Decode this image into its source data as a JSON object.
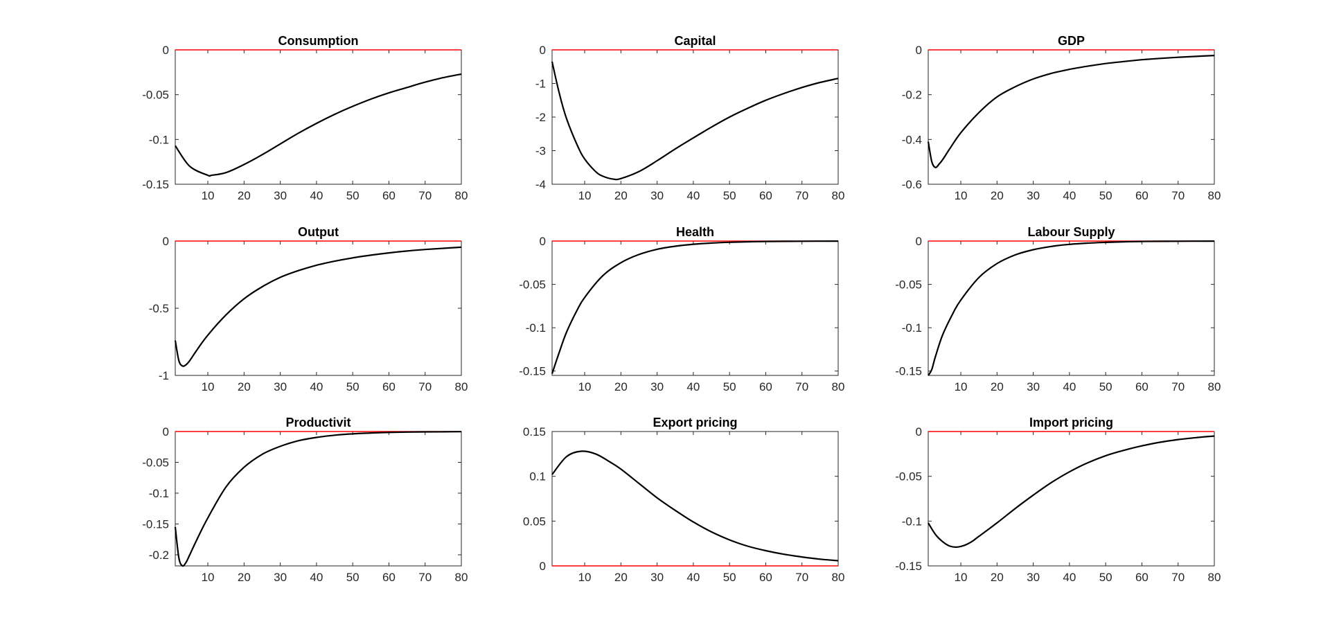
{
  "chart_data": [
    {
      "type": "line",
      "title": "Consumption",
      "xlim": [
        1,
        80
      ],
      "ylim": [
        -0.15,
        0
      ],
      "xticks": [
        10,
        20,
        30,
        40,
        50,
        60,
        70,
        80
      ],
      "yticks": [
        0,
        -0.05,
        -0.1,
        -0.15
      ],
      "ytick_labels": [
        "0",
        "-0.05",
        "-0.1",
        "-0.15"
      ],
      "reference_line": 0,
      "x": [
        1,
        5,
        10,
        11,
        15,
        20,
        25,
        30,
        35,
        40,
        45,
        50,
        55,
        60,
        65,
        70,
        75,
        80
      ],
      "y": [
        -0.107,
        -0.13,
        -0.14,
        -0.14,
        -0.137,
        -0.128,
        -0.117,
        -0.105,
        -0.093,
        -0.082,
        -0.072,
        -0.063,
        -0.055,
        -0.048,
        -0.042,
        -0.036,
        -0.031,
        -0.027
      ]
    },
    {
      "type": "line",
      "title": "Capital",
      "xlim": [
        1,
        80
      ],
      "ylim": [
        -4,
        0
      ],
      "xticks": [
        10,
        20,
        30,
        40,
        50,
        60,
        70,
        80
      ],
      "yticks": [
        0,
        -1,
        -2,
        -3,
        -4
      ],
      "ytick_labels": [
        "0",
        "-1",
        "-2",
        "-3",
        "-4"
      ],
      "reference_line": 0,
      "x": [
        1,
        3,
        5,
        8,
        10,
        13,
        15,
        18,
        20,
        25,
        30,
        35,
        40,
        45,
        50,
        55,
        60,
        65,
        70,
        75,
        80
      ],
      "y": [
        -0.35,
        -1.3,
        -2.05,
        -2.85,
        -3.25,
        -3.62,
        -3.76,
        -3.85,
        -3.83,
        -3.62,
        -3.3,
        -2.95,
        -2.62,
        -2.3,
        -2.0,
        -1.74,
        -1.5,
        -1.3,
        -1.12,
        -0.97,
        -0.85
      ]
    },
    {
      "type": "line",
      "title": "GDP",
      "xlim": [
        1,
        80
      ],
      "ylim": [
        -0.6,
        0
      ],
      "xticks": [
        10,
        20,
        30,
        40,
        50,
        60,
        70,
        80
      ],
      "yticks": [
        0,
        -0.2,
        -0.4,
        -0.6
      ],
      "ytick_labels": [
        "0",
        "-0.2",
        "-0.4",
        "-0.6"
      ],
      "reference_line": 0,
      "x": [
        1,
        2,
        3,
        4,
        5,
        7,
        10,
        15,
        20,
        25,
        30,
        35,
        40,
        45,
        50,
        55,
        60,
        65,
        70,
        75,
        80
      ],
      "y": [
        -0.41,
        -0.5,
        -0.525,
        -0.51,
        -0.49,
        -0.44,
        -0.37,
        -0.28,
        -0.21,
        -0.165,
        -0.13,
        -0.105,
        -0.087,
        -0.073,
        -0.061,
        -0.052,
        -0.044,
        -0.038,
        -0.033,
        -0.029,
        -0.025
      ]
    },
    {
      "type": "line",
      "title": "Output",
      "xlim": [
        1,
        80
      ],
      "ylim": [
        -1,
        0
      ],
      "xticks": [
        10,
        20,
        30,
        40,
        50,
        60,
        70,
        80
      ],
      "yticks": [
        0,
        -0.5,
        -1
      ],
      "ytick_labels": [
        "0",
        "-0.5",
        "-1"
      ],
      "reference_line": 0,
      "x": [
        1,
        2,
        3,
        4,
        5,
        7,
        10,
        15,
        20,
        25,
        30,
        35,
        40,
        45,
        50,
        55,
        60,
        65,
        70,
        75,
        80
      ],
      "y": [
        -0.74,
        -0.89,
        -0.93,
        -0.92,
        -0.89,
        -0.81,
        -0.7,
        -0.55,
        -0.43,
        -0.34,
        -0.27,
        -0.22,
        -0.18,
        -0.15,
        -0.125,
        -0.105,
        -0.088,
        -0.074,
        -0.063,
        -0.054,
        -0.046
      ]
    },
    {
      "type": "line",
      "title": "Health",
      "xlim": [
        1,
        80
      ],
      "ylim": [
        -0.155,
        0
      ],
      "xticks": [
        10,
        20,
        30,
        40,
        50,
        60,
        70,
        80
      ],
      "yticks": [
        0,
        -0.05,
        -0.1,
        -0.15
      ],
      "ytick_labels": [
        "0",
        "-0.05",
        "-0.1",
        "-0.15"
      ],
      "reference_line": 0,
      "x": [
        1,
        3,
        5,
        8,
        10,
        15,
        20,
        25,
        30,
        35,
        40,
        45,
        50,
        55,
        60,
        70,
        80
      ],
      "y": [
        -0.153,
        -0.128,
        -0.105,
        -0.079,
        -0.065,
        -0.04,
        -0.025,
        -0.0155,
        -0.0095,
        -0.006,
        -0.0037,
        -0.0023,
        -0.0014,
        -0.0009,
        -0.0005,
        -0.0002,
        -0.0001
      ]
    },
    {
      "type": "line",
      "title": "Labour Supply",
      "xlim": [
        1,
        80
      ],
      "ylim": [
        -0.155,
        0
      ],
      "xticks": [
        10,
        20,
        30,
        40,
        50,
        60,
        70,
        80
      ],
      "yticks": [
        0,
        -0.05,
        -0.1,
        -0.15
      ],
      "ytick_labels": [
        "0",
        "-0.05",
        "-0.1",
        "-0.15"
      ],
      "reference_line": 0,
      "x": [
        1,
        2,
        3,
        5,
        8,
        10,
        15,
        20,
        25,
        30,
        35,
        40,
        45,
        50,
        55,
        60,
        70,
        80
      ],
      "y": [
        -0.155,
        -0.148,
        -0.133,
        -0.108,
        -0.082,
        -0.068,
        -0.042,
        -0.026,
        -0.016,
        -0.01,
        -0.0062,
        -0.0038,
        -0.0024,
        -0.0015,
        -0.0009,
        -0.0005,
        -0.0002,
        -0.0001
      ]
    },
    {
      "type": "line",
      "title": "Productivit",
      "xlim": [
        1,
        80
      ],
      "ylim": [
        -0.218,
        0
      ],
      "xticks": [
        10,
        20,
        30,
        40,
        50,
        60,
        70,
        80
      ],
      "yticks": [
        0,
        -0.05,
        -0.1,
        -0.15,
        -0.2
      ],
      "ytick_labels": [
        "0",
        "-0.05",
        "-0.1",
        "-0.15",
        "-0.2"
      ],
      "reference_line": 0,
      "x": [
        1,
        2,
        3,
        4,
        5,
        7,
        10,
        15,
        20,
        25,
        30,
        35,
        40,
        45,
        50,
        55,
        60,
        65,
        70,
        75,
        80
      ],
      "y": [
        -0.155,
        -0.205,
        -0.218,
        -0.212,
        -0.2,
        -0.175,
        -0.14,
        -0.09,
        -0.058,
        -0.037,
        -0.024,
        -0.015,
        -0.0095,
        -0.006,
        -0.0038,
        -0.0024,
        -0.0015,
        -0.0009,
        -0.0006,
        -0.0004,
        -0.0002
      ]
    },
    {
      "type": "line",
      "title": "Export pricing",
      "xlim": [
        1,
        80
      ],
      "ylim": [
        0,
        0.15
      ],
      "xticks": [
        10,
        20,
        30,
        40,
        50,
        60,
        70,
        80
      ],
      "yticks": [
        0.15,
        0.1,
        0.05,
        0
      ],
      "ytick_labels": [
        "0.15",
        "0.1",
        "0.05",
        "0"
      ],
      "reference_line": 0,
      "x": [
        1,
        5,
        9,
        13,
        17,
        20,
        25,
        30,
        35,
        40,
        45,
        50,
        55,
        60,
        65,
        70,
        75,
        80
      ],
      "y": [
        0.102,
        0.122,
        0.128,
        0.125,
        0.116,
        0.108,
        0.092,
        0.076,
        0.062,
        0.049,
        0.038,
        0.029,
        0.022,
        0.017,
        0.013,
        0.01,
        0.0075,
        0.0058
      ]
    },
    {
      "type": "line",
      "title": "Import pricing",
      "xlim": [
        1,
        80
      ],
      "ylim": [
        -0.15,
        0
      ],
      "xticks": [
        10,
        20,
        30,
        40,
        50,
        60,
        70,
        80
      ],
      "yticks": [
        0,
        -0.05,
        -0.1,
        -0.15
      ],
      "ytick_labels": [
        "0",
        "-0.05",
        "-0.1",
        "-0.15"
      ],
      "reference_line": 0,
      "x": [
        1,
        3,
        5,
        7,
        9,
        11,
        13,
        15,
        20,
        25,
        30,
        35,
        40,
        45,
        50,
        55,
        60,
        65,
        70,
        75,
        80
      ],
      "y": [
        -0.102,
        -0.115,
        -0.123,
        -0.128,
        -0.129,
        -0.127,
        -0.123,
        -0.117,
        -0.102,
        -0.086,
        -0.071,
        -0.057,
        -0.045,
        -0.035,
        -0.027,
        -0.021,
        -0.016,
        -0.012,
        -0.009,
        -0.0068,
        -0.005
      ]
    }
  ],
  "colors": {
    "series": "#000000",
    "reference_line": "#ff0000",
    "axes": "#262626"
  }
}
